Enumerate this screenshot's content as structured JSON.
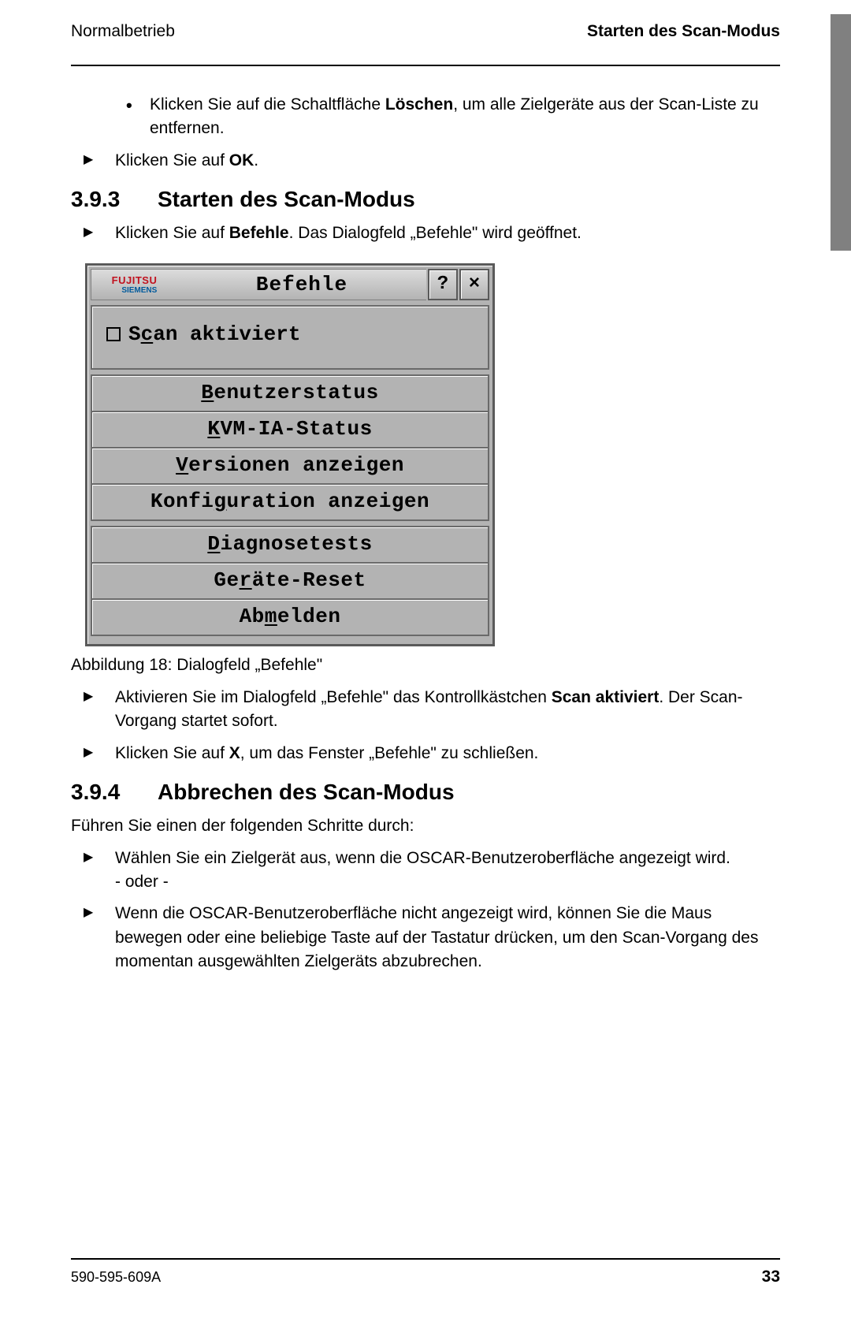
{
  "header": {
    "left": "Normalbetrieb",
    "right": "Starten des Scan-Modus"
  },
  "intro_bullet": {
    "pre": "Klicken Sie auf die Schaltfläche ",
    "bold": "Löschen",
    "post": ", um alle Zielgeräte aus der Scan-Liste zu entfernen."
  },
  "intro_arrow": {
    "pre": "Klicken Sie auf ",
    "bold": "OK",
    "post": "."
  },
  "section_393": {
    "num": "3.9.3",
    "title": "Starten des Scan-Modus",
    "arrow1": {
      "pre": "Klicken Sie auf ",
      "bold": "Befehle",
      "post": ". Das Dialogfeld „Befehle\" wird geöffnet."
    }
  },
  "dialog": {
    "logo_top": "FUJITSU",
    "logo_bottom": "SIEMENS",
    "title": "Befehle",
    "help": "?",
    "close": "×",
    "checkbox_pre": "S",
    "checkbox_ul": "c",
    "checkbox_post": "an aktiviert",
    "group1": {
      "i1_ul": "B",
      "i1_rest": "enutzerstatus",
      "i2_ul": "K",
      "i2_rest": "VM-IA-Status",
      "i3_ul": "V",
      "i3_rest": "ersionen anzeigen",
      "i4_pre": "Konfi",
      "i4_ul": "g",
      "i4_post": "uration anzeigen"
    },
    "group2": {
      "i1_ul": "D",
      "i1_rest": "iagnosetests",
      "i2_pre": "Ge",
      "i2_ul": "r",
      "i2_post": "äte-Reset",
      "i3_pre": "Ab",
      "i3_ul": "m",
      "i3_post": "elden"
    }
  },
  "figure_caption": "Abbildung 18: Dialogfeld „Befehle\"",
  "post_dialog": {
    "a1_pre": "Aktivieren Sie im Dialogfeld „Befehle\" das Kontrollkästchen ",
    "a1_bold": "Scan aktiviert",
    "a1_post": ". Der Scan-Vorgang startet sofort.",
    "a2_pre": "Klicken Sie auf ",
    "a2_bold": "X",
    "a2_post": ", um das Fenster „Befehle\" zu schließen."
  },
  "section_394": {
    "num": "3.9.4",
    "title": "Abbrechen des Scan-Modus",
    "lead": "Führen Sie einen der folgenden Schritte durch:",
    "a1": "Wählen Sie ein Zielgerät aus, wenn die OSCAR-Benutzeroberfläche angezeigt wird.",
    "a1_sub": "- oder -",
    "a2": "Wenn die OSCAR-Benutzeroberfläche nicht angezeigt wird, können Sie die Maus bewegen oder eine beliebige Taste auf der Tastatur drücken, um den Scan-Vorgang des momentan ausgewählten Zielgeräts abzubrechen."
  },
  "footer": {
    "doc_id": "590-595-609A",
    "page": "33"
  }
}
